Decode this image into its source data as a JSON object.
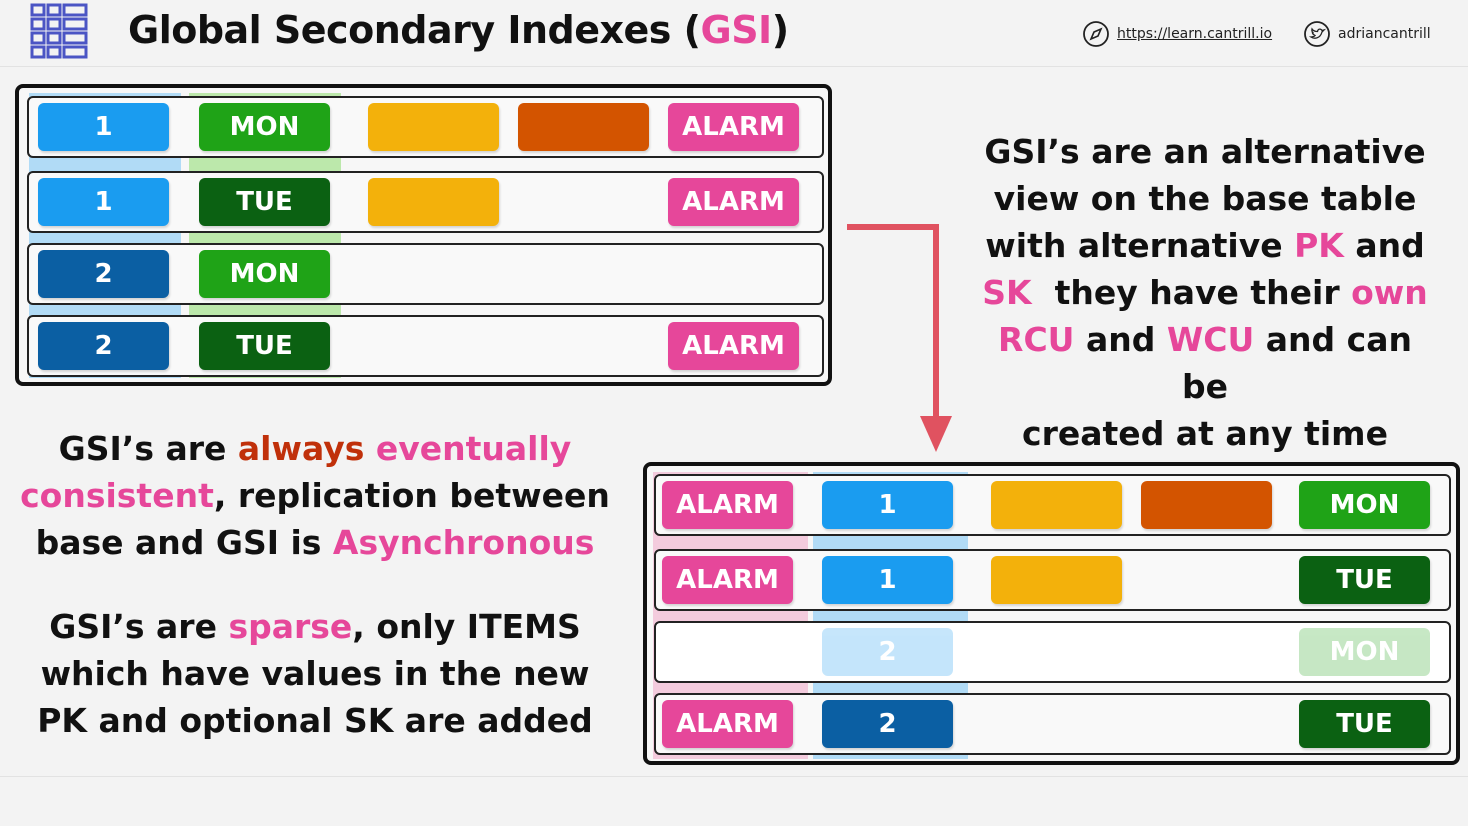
{
  "header": {
    "title_prefix": "Global Secondary Indexes (",
    "title_highlight": "GSI",
    "title_suffix": ")",
    "url": "https://learn.cantrill.io",
    "twitter": "adriancantrill"
  },
  "colors": {
    "light_blue": "#1a9cf0",
    "dark_blue": "#0b5fa3",
    "light_green": "#1fa317",
    "dark_green": "#0b6112",
    "amber": "#f3b10b",
    "orange": "#d35400",
    "pink": "#e6479a",
    "red_text": "#c0300a"
  },
  "base_table": {
    "rows": [
      {
        "pk": "1",
        "sk": "MON",
        "alarm": "ALARM"
      },
      {
        "pk": "1",
        "sk": "TUE",
        "alarm": "ALARM"
      },
      {
        "pk": "2",
        "sk": "MON",
        "alarm": ""
      },
      {
        "pk": "2",
        "sk": "TUE",
        "alarm": "ALARM"
      }
    ]
  },
  "gsi_table": {
    "rows": [
      {
        "alarm": "ALARM",
        "pk": "1",
        "sk": "MON"
      },
      {
        "alarm": "ALARM",
        "pk": "1",
        "sk": "TUE"
      },
      {
        "alarm": "",
        "pk": "2",
        "sk": "MON"
      },
      {
        "alarm": "ALARM",
        "pk": "2",
        "sk": "TUE"
      }
    ]
  },
  "right_text": {
    "line1": "GSI’s are an alternative",
    "line2": "view on the base table",
    "line3_a": "with alternative ",
    "line3_pk": "PK",
    "line3_b": " and",
    "line4_sk": "SK",
    "line4_a": "  they have their ",
    "line4_own": "own",
    "line5_rcu": "RCU",
    "line5_a": " and ",
    "line5_wcu": "WCU",
    "line5_b": " and can be",
    "line6": "created at any time"
  },
  "left_text_1": {
    "a": "GSI’s are ",
    "always": "always",
    "space": " ",
    "eventually": "eventually",
    "consistent": "consistent",
    "b": ", replication between",
    "c": "base and GSI is ",
    "async": "Asynchronous"
  },
  "left_text_2": {
    "a": "GSI’s are ",
    "sparse": "sparse",
    "b": ", only ITEMS",
    "line2": "which have values in the new",
    "line3": "PK and optional SK are added"
  }
}
